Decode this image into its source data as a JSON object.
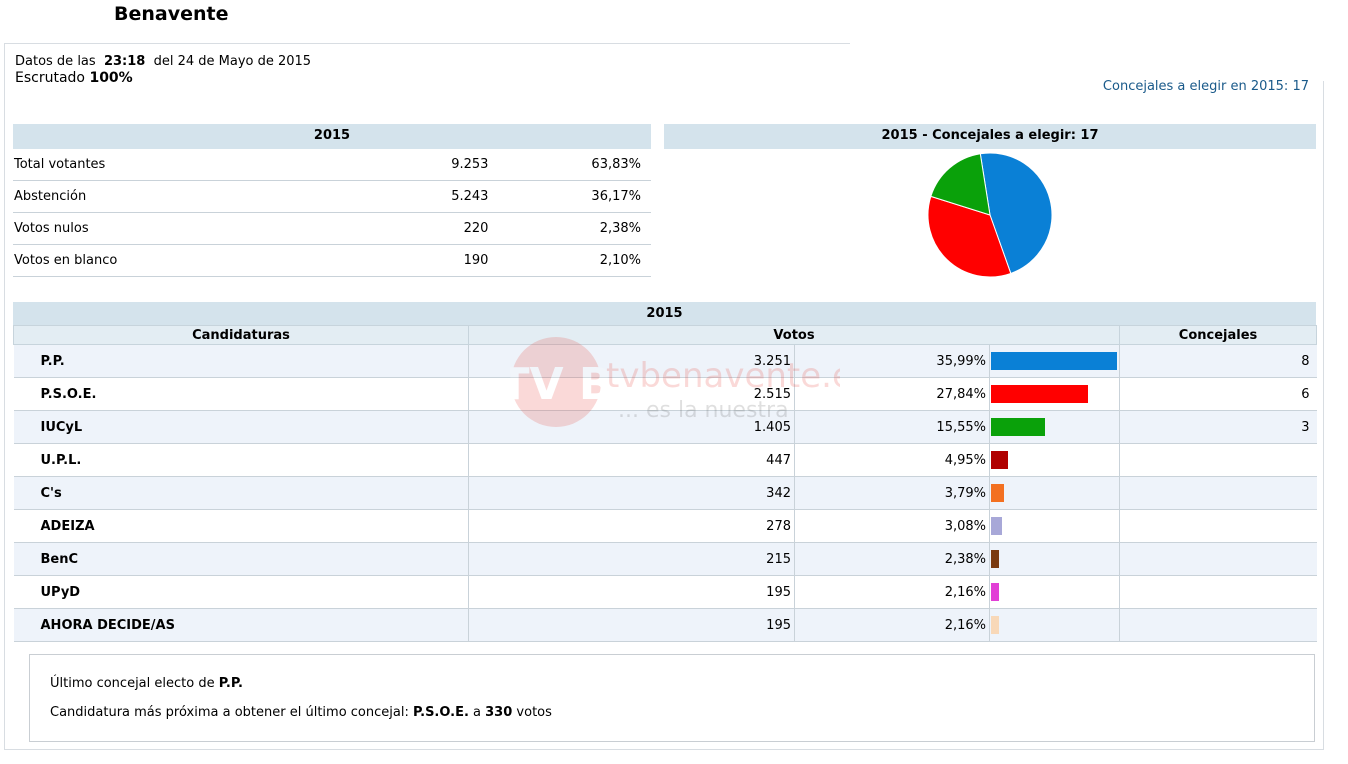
{
  "title": "Benavente",
  "info": {
    "data_prefix": "Datos de las",
    "time": "23:18",
    "date_text": "del 24 de Mayo de 2015",
    "scrutiny_prefix": "Escrutado",
    "scrutiny_value": "100%"
  },
  "concejales_link": "Concejales a elegir en 2015: 17",
  "summary": {
    "header": "2015",
    "rows": [
      {
        "label": "Total votantes",
        "value": "9.253",
        "pct": "63,83%"
      },
      {
        "label": "Abstención",
        "value": "5.243",
        "pct": "36,17%"
      },
      {
        "label": "Votos nulos",
        "value": "220",
        "pct": "2,38%"
      },
      {
        "label": "Votos en blanco",
        "value": "190",
        "pct": "2,10%"
      }
    ]
  },
  "pie": {
    "header": "2015 - Concejales a elegir: 17",
    "slices": [
      {
        "party": "P.P.",
        "seats": 8,
        "color": "#0a80d6"
      },
      {
        "party": "P.S.O.E.",
        "seats": 6,
        "color": "#ff0000"
      },
      {
        "party": "IUCyL",
        "seats": 3,
        "color": "#0aa10a"
      }
    ]
  },
  "results": {
    "header": "2015",
    "columns": {
      "candidaturas": "Candidaturas",
      "votos": "Votos",
      "concejales": "Concejales"
    },
    "rows": [
      {
        "name": "P.P.",
        "votes": "3.251",
        "pct": "35,99%",
        "pct_value": 35.99,
        "color": "#0a80d6",
        "seats": "8"
      },
      {
        "name": "P.S.O.E.",
        "votes": "2.515",
        "pct": "27,84%",
        "pct_value": 27.84,
        "color": "#ff0000",
        "seats": "6"
      },
      {
        "name": "IUCyL",
        "votes": "1.405",
        "pct": "15,55%",
        "pct_value": 15.55,
        "color": "#0aa10a",
        "seats": "3"
      },
      {
        "name": "U.P.L.",
        "votes": "447",
        "pct": "4,95%",
        "pct_value": 4.95,
        "color": "#b00000",
        "seats": ""
      },
      {
        "name": "C's",
        "votes": "342",
        "pct": "3,79%",
        "pct_value": 3.79,
        "color": "#f37021",
        "seats": ""
      },
      {
        "name": "ADEIZA",
        "votes": "278",
        "pct": "3,08%",
        "pct_value": 3.08,
        "color": "#a8a8d8",
        "seats": ""
      },
      {
        "name": "BenC",
        "votes": "215",
        "pct": "2,38%",
        "pct_value": 2.38,
        "color": "#7a3a10",
        "seats": ""
      },
      {
        "name": "UPyD",
        "votes": "195",
        "pct": "2,16%",
        "pct_value": 2.16,
        "color": "#e23fd6",
        "seats": ""
      },
      {
        "name": "AHORA DECIDE/AS",
        "votes": "195",
        "pct": "2,16%",
        "pct_value": 2.16,
        "color": "#f8d8b8",
        "seats": ""
      }
    ]
  },
  "watermark": {
    "brand": "tvbenavente.es",
    "tagline": "... es la nuestra",
    "logo_letters": "TV B",
    "color": "#e8352b"
  },
  "last_seat": {
    "line1_prefix": "Último concejal electo de",
    "line1_party": "P.P.",
    "line2_prefix": "Candidatura más próxima a obtener el último concejal:",
    "line2_party": "P.S.O.E.",
    "line2_mid": "a",
    "line2_votes": "330",
    "line2_suffix": "votos"
  }
}
